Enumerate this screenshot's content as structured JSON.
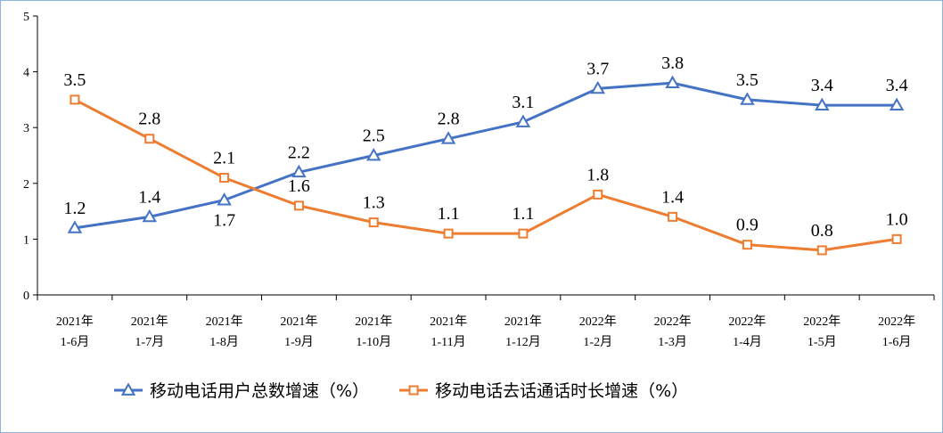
{
  "chart_data": {
    "type": "line",
    "categories": [
      [
        "2021年",
        "1-6月"
      ],
      [
        "2021年",
        "1-7月"
      ],
      [
        "2021年",
        "1-8月"
      ],
      [
        "2021年",
        "1-9月"
      ],
      [
        "2021年",
        "1-10月"
      ],
      [
        "2021年",
        "1-11月"
      ],
      [
        "2021年",
        "1-12月"
      ],
      [
        "2022年",
        "1-2月"
      ],
      [
        "2022年",
        "1-3月"
      ],
      [
        "2022年",
        "1-4月"
      ],
      [
        "2022年",
        "1-5月"
      ],
      [
        "2022年",
        "1-6月"
      ]
    ],
    "series": [
      {
        "name": "移动电话用户总数增速（%）",
        "values": [
          1.2,
          1.4,
          1.7,
          2.2,
          2.5,
          2.8,
          3.1,
          3.7,
          3.8,
          3.5,
          3.4,
          3.4
        ],
        "color": "#4472c4",
        "marker": "triangle",
        "label_position": [
          "above",
          "above",
          "below",
          "above",
          "above",
          "above",
          "above",
          "above",
          "above",
          "above",
          "above",
          "above"
        ]
      },
      {
        "name": "移动电话去话通话时长增速（%）",
        "values": [
          3.5,
          2.8,
          2.1,
          1.6,
          1.3,
          1.1,
          1.1,
          1.8,
          1.4,
          0.9,
          0.8,
          1.0
        ],
        "color": "#ed7d31",
        "marker": "square",
        "label_position": [
          "above",
          "above",
          "above",
          "above",
          "above",
          "above",
          "above",
          "above",
          "above",
          "above",
          "above",
          "above"
        ]
      }
    ],
    "yticks": [
      "0",
      "1",
      "2",
      "3",
      "4",
      "5"
    ],
    "ylim": [
      0,
      5
    ],
    "grid": false,
    "legend_position": "bottom"
  }
}
